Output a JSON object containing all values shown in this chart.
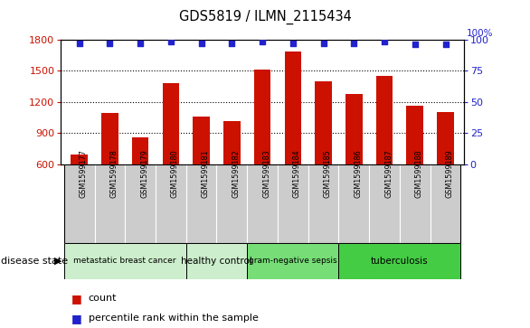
{
  "title": "GDS5819 / ILMN_2115434",
  "samples": [
    "GSM1599177",
    "GSM1599178",
    "GSM1599179",
    "GSM1599180",
    "GSM1599181",
    "GSM1599182",
    "GSM1599183",
    "GSM1599184",
    "GSM1599185",
    "GSM1599186",
    "GSM1599187",
    "GSM1599188",
    "GSM1599189"
  ],
  "counts": [
    690,
    1090,
    860,
    1380,
    1060,
    1010,
    1510,
    1680,
    1400,
    1270,
    1450,
    1160,
    1100
  ],
  "percentiles": [
    97,
    97,
    97,
    98,
    97,
    97,
    98,
    97,
    97,
    97,
    98,
    96,
    96
  ],
  "ylim_left": [
    600,
    1800
  ],
  "ylim_right": [
    0,
    100
  ],
  "yticks_left": [
    600,
    900,
    1200,
    1500,
    1800
  ],
  "yticks_right": [
    0,
    25,
    50,
    75,
    100
  ],
  "bar_color": "#cc1100",
  "dot_color": "#2222cc",
  "gridline_ticks": [
    900,
    1200,
    1500
  ],
  "groups": [
    {
      "label": "metastatic breast cancer",
      "start": 0,
      "end": 3,
      "color": "#cceecc"
    },
    {
      "label": "healthy control",
      "start": 4,
      "end": 5,
      "color": "#cceecc"
    },
    {
      "label": "gram-negative sepsis",
      "start": 6,
      "end": 8,
      "color": "#77dd77"
    },
    {
      "label": "tuberculosis",
      "start": 9,
      "end": 12,
      "color": "#44cc44"
    }
  ],
  "disease_state_label": "disease state",
  "legend_count_label": "count",
  "legend_pct_label": "percentile rank within the sample",
  "bg_color": "#ffffff",
  "tick_bg": "#cccccc",
  "label_bg": "#cccccc"
}
